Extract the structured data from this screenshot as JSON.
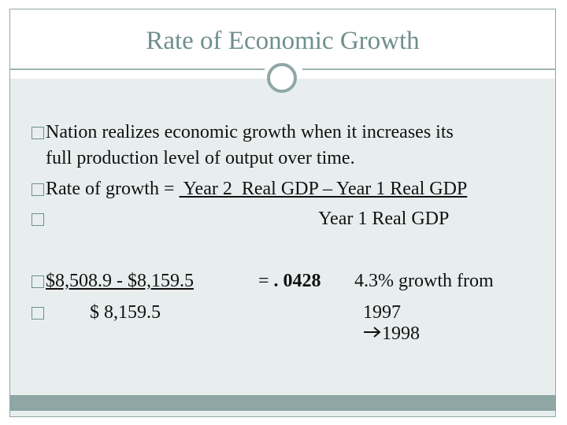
{
  "slide": {
    "title": "Rate of Economic Growth",
    "bullet1": "Nation realizes economic growth when it increases its",
    "bullet1_cont": "full production level of output over time.",
    "rate_label": "Rate of growth = ",
    "numerator": " Year 2  Real GDP – Year 1 Real GDP",
    "denominator": "Year 1 Real GDP",
    "calc_numerator": "$8,508.9 - $8,159.5",
    "calc_denominator": "$ 8,159.5",
    "equals": "= ",
    "result": ". 0428",
    "percent": "4.3% growth from",
    "year_from": "1997",
    "year_to": "1998"
  },
  "colors": {
    "accent": "#8fa6a5",
    "title": "#6f8f8c",
    "background": "#e8eeee"
  },
  "icons": {
    "bullet": "square-bullet-icon",
    "arrow": "right-arrow-icon"
  }
}
